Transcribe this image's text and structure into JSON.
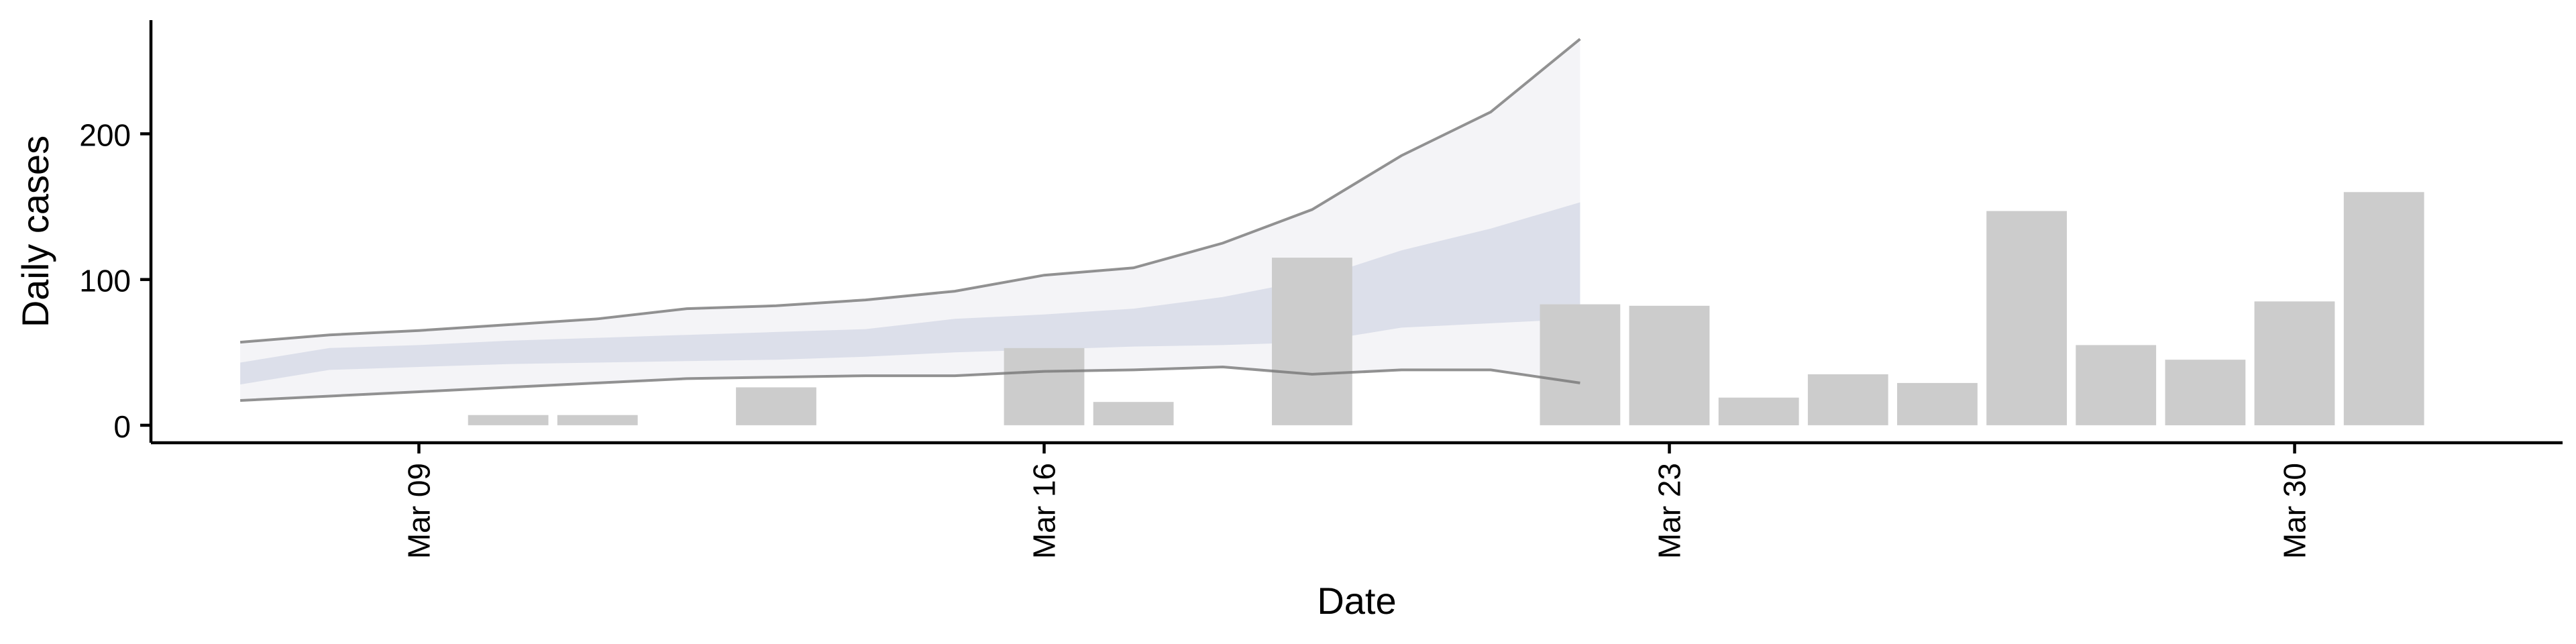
{
  "chart_data": {
    "type": "bar",
    "xlabel": "Date",
    "ylabel": "Daily cases",
    "x_tick_labels": [
      "Mar 09",
      "Mar 16",
      "Mar 23",
      "Mar 30"
    ],
    "x_tick_dates": [
      "2020-03-09",
      "2020-03-16",
      "2020-03-23",
      "2020-03-30"
    ],
    "y_ticks": [
      0,
      100,
      200
    ],
    "y_tick_labels": [
      "0",
      "100",
      "200"
    ],
    "xlim": [
      "2020-03-06",
      "2020-04-02"
    ],
    "ylim": [
      -12,
      278
    ],
    "grid": false,
    "legend": "none",
    "colors": {
      "bars": "#cccccc",
      "band_outer": "#e6e6ee",
      "band_inner": "#c9cde0",
      "bound_line": "#777777",
      "axis": "#000000"
    },
    "observed_cases": [
      {
        "date": "2020-03-10",
        "value": 7
      },
      {
        "date": "2020-03-11",
        "value": 7
      },
      {
        "date": "2020-03-13",
        "value": 26
      },
      {
        "date": "2020-03-16",
        "value": 53
      },
      {
        "date": "2020-03-17",
        "value": 16
      },
      {
        "date": "2020-03-19",
        "value": 115
      },
      {
        "date": "2020-03-22",
        "value": 83
      },
      {
        "date": "2020-03-23",
        "value": 82
      },
      {
        "date": "2020-03-24",
        "value": 19
      },
      {
        "date": "2020-03-25",
        "value": 35
      },
      {
        "date": "2020-03-26",
        "value": 29
      },
      {
        "date": "2020-03-27",
        "value": 147
      },
      {
        "date": "2020-03-28",
        "value": 55
      },
      {
        "date": "2020-03-29",
        "value": 45
      },
      {
        "date": "2020-03-30",
        "value": 85
      },
      {
        "date": "2020-03-31",
        "value": 160
      }
    ],
    "projection": {
      "dates": [
        "2020-03-07",
        "2020-03-08",
        "2020-03-09",
        "2020-03-10",
        "2020-03-11",
        "2020-03-12",
        "2020-03-13",
        "2020-03-14",
        "2020-03-15",
        "2020-03-16",
        "2020-03-17",
        "2020-03-18",
        "2020-03-19",
        "2020-03-20",
        "2020-03-21",
        "2020-03-22"
      ],
      "outer_upper": [
        57,
        62,
        65,
        69,
        73,
        80,
        82,
        86,
        92,
        103,
        108,
        125,
        148,
        185,
        215,
        265
      ],
      "outer_lower": [
        17,
        20,
        23,
        26,
        29,
        32,
        33,
        34,
        34,
        37,
        38,
        40,
        35,
        38,
        38,
        29
      ],
      "inner_upper": [
        43,
        53,
        55,
        58,
        60,
        62,
        64,
        66,
        73,
        76,
        80,
        88,
        100,
        120,
        135,
        153
      ],
      "inner_lower": [
        28,
        38,
        40,
        42,
        43,
        44,
        45,
        47,
        50,
        52,
        54,
        55,
        57,
        67,
        70,
        73
      ]
    }
  }
}
